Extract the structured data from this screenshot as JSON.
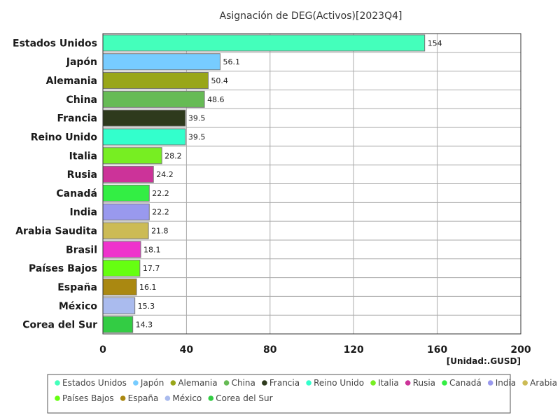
{
  "chart_data": {
    "type": "bar",
    "orientation": "horizontal",
    "title": "Asignación de DEG(Activos)[2023Q4]",
    "unit_label": "[Unidad:.GUSD]",
    "categories": [
      "Estados Unidos",
      "Japón",
      "Alemania",
      "China",
      "Francia",
      "Reino Unido",
      "Italia",
      "Rusia",
      "Canadá",
      "India",
      "Arabia Saudita",
      "Brasil",
      "Países Bajos",
      "España",
      "México",
      "Corea del Sur"
    ],
    "values": [
      154,
      56.1,
      50.4,
      48.6,
      39.5,
      39.5,
      28.2,
      24.2,
      22.2,
      22.2,
      21.8,
      18.1,
      17.7,
      16.1,
      15.3,
      14.3
    ],
    "value_labels": [
      "154",
      "56.1",
      "50.4",
      "48.6",
      "39.5",
      "39.5",
      "28.2",
      "24.2",
      "22.2",
      "22.2",
      "21.8",
      "18.1",
      "17.7",
      "16.1",
      "15.3",
      "14.3"
    ],
    "colors": [
      "#44ffbb",
      "#77ccff",
      "#99a619",
      "#66bb55",
      "#2e3a1d",
      "#33ffcc",
      "#77ee22",
      "#cc3399",
      "#33ee44",
      "#9999ee",
      "#ccbb55",
      "#ee33cc",
      "#66ff11",
      "#aa8811",
      "#aabbee",
      "#33cc44"
    ],
    "xlim": [
      0,
      200
    ],
    "xticks": [
      0,
      40,
      80,
      120,
      160,
      200
    ],
    "grid": true,
    "legend_position": "bottom"
  }
}
